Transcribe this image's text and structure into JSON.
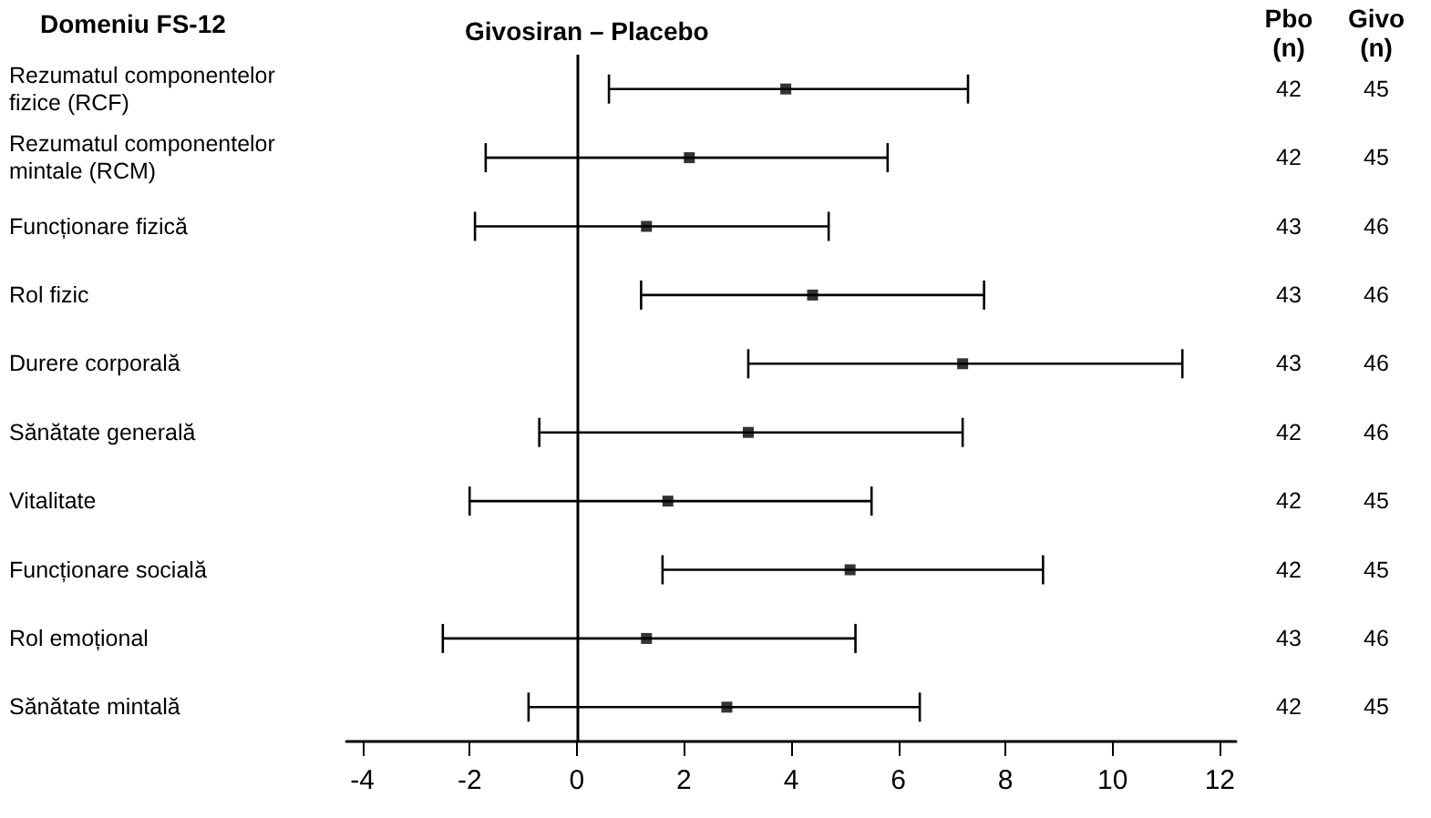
{
  "chart_data": {
    "type": "scatter",
    "orientation": "horizontal",
    "title": "Givosiran – Placebo",
    "ylabel": "Domeniu FS-12",
    "categories": [
      "Rezumatul componentelor\nfizice (RCF)",
      "Rezumatul componentelor\nmintale (RCM)",
      "Funcționare fizică",
      "Rol fizic",
      "Durere corporală",
      "Sănătate generală",
      "Vitalitate",
      "Funcționare socială",
      "Rol emoțional",
      "Sănătate mintală"
    ],
    "values": [
      3.9,
      2.1,
      1.3,
      4.4,
      7.2,
      3.2,
      1.7,
      5.1,
      1.3,
      2.8
    ],
    "errors": [
      [
        0.6,
        7.3
      ],
      [
        -1.7,
        5.8
      ],
      [
        -1.9,
        4.7
      ],
      [
        1.2,
        7.6
      ],
      [
        3.2,
        11.3
      ],
      [
        -0.7,
        7.2
      ],
      [
        -2.0,
        5.5
      ],
      [
        1.6,
        8.7
      ],
      [
        -2.5,
        5.2
      ],
      [
        -0.9,
        6.4
      ]
    ],
    "color": "#000000",
    "marker": "square",
    "xlim": [
      -4.3,
      12.3
    ],
    "xticks": [
      -4,
      -2,
      0,
      2,
      4,
      6,
      8,
      10,
      12
    ],
    "ref_lines": [
      {
        "axis": "x",
        "value": 0
      }
    ],
    "grid": false,
    "annotations": [
      "Pbo\n(n)",
      "Givo\n(n)",
      "42",
      "45",
      "42",
      "45",
      "43",
      "46",
      "43",
      "46",
      "43",
      "46",
      "42",
      "46",
      "42",
      "45",
      "42",
      "45",
      "43",
      "46",
      "42",
      "45"
    ]
  }
}
